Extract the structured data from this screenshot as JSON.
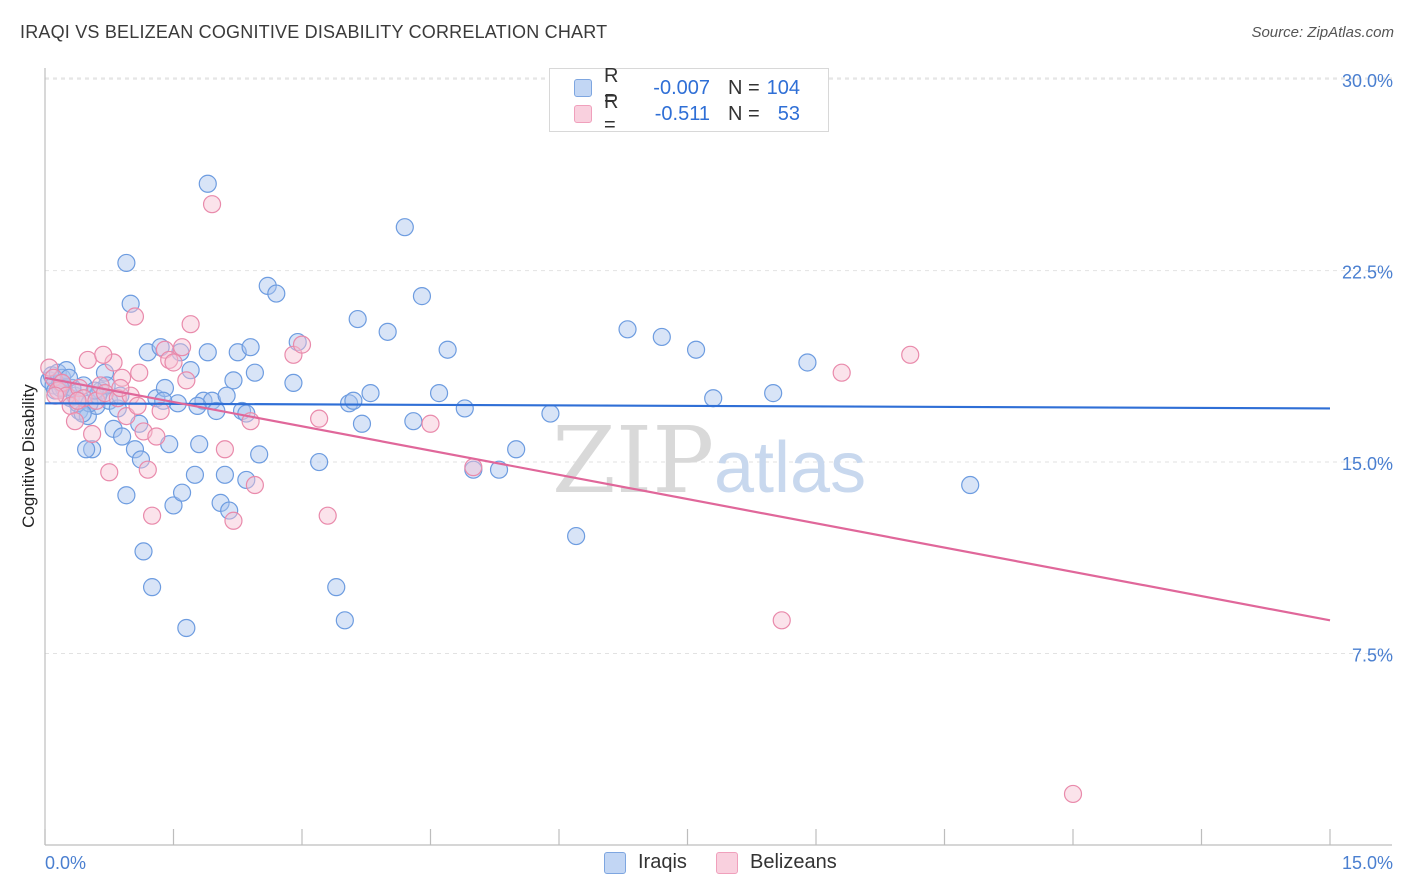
{
  "title": "IRAQI VS BELIZEAN COGNITIVE DISABILITY CORRELATION CHART",
  "source": "Source: ZipAtlas.com",
  "watermark": {
    "zip": "ZIP",
    "atlas": "atlas"
  },
  "legend": {
    "rows": [
      {
        "r_label": "R =",
        "r_value": "-0.007",
        "n_label": "N =",
        "n_value": "104",
        "color": "#7ea6e0"
      },
      {
        "r_label": "R =",
        "r_value": "-0.511",
        "n_label": "N =",
        "n_value": "53",
        "color": "#f0a0bc"
      }
    ]
  },
  "bottom_legend": [
    "Iraqis",
    "Belizeans"
  ],
  "colors": {
    "iraqi_fill": "#a8c4ee",
    "iraqi_stroke": "#6d9ce0",
    "iraqi_line": "#2f6fd6",
    "belize_fill": "#f7c2d3",
    "belize_stroke": "#e98aab",
    "belize_line": "#e0679a",
    "tick_text": "#4a7fd0",
    "grid": "#e2e2e2"
  },
  "chart_data": {
    "type": "scatter",
    "title": "IRAQI VS BELIZEAN COGNITIVE DISABILITY CORRELATION CHART",
    "xlabel": "",
    "ylabel": "Cognitive Disability",
    "xlim": [
      0,
      15
    ],
    "ylim": [
      0,
      31
    ],
    "x_tick_labels": [
      "0.0%",
      "15.0%"
    ],
    "y_ticks": [
      7.5,
      15.0,
      22.5,
      30.0
    ],
    "y_tick_labels": [
      "7.5%",
      "15.0%",
      "22.5%",
      "30.0%"
    ],
    "grid": true,
    "series": [
      {
        "name": "Iraqis",
        "r": -0.007,
        "n": 104,
        "trend": {
          "x": [
            0.0,
            15.0
          ],
          "y": [
            17.3,
            17.1
          ]
        },
        "points": [
          [
            0.05,
            18.2
          ],
          [
            0.08,
            18.4
          ],
          [
            0.1,
            18.0
          ],
          [
            0.12,
            17.8
          ],
          [
            0.15,
            18.5
          ],
          [
            0.18,
            18.1
          ],
          [
            0.2,
            18.3
          ],
          [
            0.22,
            17.9
          ],
          [
            0.25,
            18.6
          ],
          [
            0.3,
            17.5
          ],
          [
            0.35,
            17.6
          ],
          [
            0.4,
            17.0
          ],
          [
            0.45,
            18.0
          ],
          [
            0.5,
            16.8
          ],
          [
            0.55,
            15.5
          ],
          [
            0.6,
            17.2
          ],
          [
            0.65,
            17.8
          ],
          [
            0.7,
            18.5
          ],
          [
            0.75,
            17.4
          ],
          [
            0.8,
            16.3
          ],
          [
            0.85,
            17.1
          ],
          [
            0.9,
            16.0
          ],
          [
            0.95,
            13.7
          ],
          [
            1.0,
            21.2
          ],
          [
            1.05,
            15.5
          ],
          [
            1.1,
            16.5
          ],
          [
            1.15,
            11.5
          ],
          [
            1.2,
            19.3
          ],
          [
            1.25,
            10.1
          ],
          [
            1.3,
            17.5
          ],
          [
            1.35,
            19.5
          ],
          [
            1.4,
            17.9
          ],
          [
            1.45,
            15.7
          ],
          [
            1.5,
            13.3
          ],
          [
            1.55,
            17.3
          ],
          [
            1.6,
            13.8
          ],
          [
            1.65,
            8.5
          ],
          [
            1.7,
            18.6
          ],
          [
            1.75,
            14.5
          ],
          [
            1.8,
            15.7
          ],
          [
            1.85,
            17.4
          ],
          [
            1.9,
            19.3
          ],
          [
            1.95,
            17.4
          ],
          [
            2.0,
            17.0
          ],
          [
            2.05,
            13.4
          ],
          [
            2.1,
            14.5
          ],
          [
            2.15,
            13.1
          ],
          [
            2.2,
            18.2
          ],
          [
            2.25,
            19.3
          ],
          [
            2.3,
            17.0
          ],
          [
            2.35,
            14.3
          ],
          [
            2.4,
            19.5
          ],
          [
            2.45,
            18.5
          ],
          [
            2.5,
            15.3
          ],
          [
            2.6,
            21.9
          ],
          [
            2.7,
            21.6
          ],
          [
            2.9,
            18.1
          ],
          [
            2.95,
            19.7
          ],
          [
            3.2,
            15.0
          ],
          [
            3.4,
            10.1
          ],
          [
            3.5,
            8.8
          ],
          [
            3.55,
            17.3
          ],
          [
            3.6,
            17.4
          ],
          [
            3.65,
            20.6
          ],
          [
            3.7,
            16.5
          ],
          [
            3.8,
            17.7
          ],
          [
            4.0,
            20.1
          ],
          [
            4.2,
            24.2
          ],
          [
            4.3,
            16.6
          ],
          [
            4.4,
            21.5
          ],
          [
            4.6,
            17.7
          ],
          [
            4.7,
            19.4
          ],
          [
            4.9,
            17.1
          ],
          [
            5.0,
            14.7
          ],
          [
            5.3,
            14.7
          ],
          [
            5.5,
            15.5
          ],
          [
            5.9,
            16.9
          ],
          [
            6.2,
            12.1
          ],
          [
            6.8,
            20.2
          ],
          [
            7.2,
            19.9
          ],
          [
            7.6,
            19.4
          ],
          [
            7.8,
            17.5
          ],
          [
            8.5,
            17.7
          ],
          [
            8.9,
            18.9
          ],
          [
            10.8,
            14.1
          ],
          [
            1.9,
            25.9
          ],
          [
            0.95,
            22.8
          ],
          [
            0.38,
            17.3
          ],
          [
            0.52,
            17.3
          ],
          [
            0.62,
            17.6
          ],
          [
            0.72,
            18.0
          ],
          [
            0.88,
            17.6
          ],
          [
            1.12,
            15.1
          ],
          [
            1.38,
            17.4
          ],
          [
            1.58,
            19.3
          ],
          [
            1.78,
            17.2
          ],
          [
            2.12,
            17.6
          ],
          [
            2.35,
            16.9
          ],
          [
            0.32,
            17.9
          ],
          [
            0.44,
            16.9
          ],
          [
            0.48,
            15.5
          ],
          [
            0.58,
            17.8
          ],
          [
            0.28,
            18.3
          ],
          [
            0.18,
            17.9
          ]
        ]
      },
      {
        "name": "Belizeans",
        "r": -0.511,
        "n": 53,
        "trend": {
          "x": [
            0.0,
            15.0
          ],
          "y": [
            18.3,
            8.8
          ]
        },
        "points": [
          [
            0.05,
            18.7
          ],
          [
            0.1,
            18.3
          ],
          [
            0.15,
            17.8
          ],
          [
            0.2,
            18.1
          ],
          [
            0.25,
            17.6
          ],
          [
            0.3,
            17.2
          ],
          [
            0.35,
            16.6
          ],
          [
            0.4,
            17.9
          ],
          [
            0.45,
            17.5
          ],
          [
            0.5,
            19.0
          ],
          [
            0.55,
            16.1
          ],
          [
            0.6,
            17.4
          ],
          [
            0.65,
            18.0
          ],
          [
            0.7,
            17.7
          ],
          [
            0.75,
            14.6
          ],
          [
            0.8,
            18.9
          ],
          [
            0.85,
            17.5
          ],
          [
            0.9,
            18.3
          ],
          [
            0.95,
            16.8
          ],
          [
            1.0,
            17.6
          ],
          [
            1.05,
            20.7
          ],
          [
            1.1,
            18.5
          ],
          [
            1.15,
            16.2
          ],
          [
            1.2,
            14.7
          ],
          [
            1.25,
            12.9
          ],
          [
            1.3,
            16.0
          ],
          [
            1.35,
            17.0
          ],
          [
            1.4,
            19.4
          ],
          [
            1.45,
            19.0
          ],
          [
            1.5,
            18.9
          ],
          [
            1.6,
            19.5
          ],
          [
            1.65,
            18.2
          ],
          [
            1.7,
            20.4
          ],
          [
            1.95,
            25.1
          ],
          [
            2.1,
            15.5
          ],
          [
            2.2,
            12.7
          ],
          [
            2.4,
            16.6
          ],
          [
            2.45,
            14.1
          ],
          [
            2.9,
            19.2
          ],
          [
            3.0,
            19.6
          ],
          [
            3.2,
            16.7
          ],
          [
            3.3,
            12.9
          ],
          [
            4.5,
            16.5
          ],
          [
            5.0,
            14.8
          ],
          [
            8.6,
            8.8
          ],
          [
            9.3,
            18.5
          ],
          [
            10.1,
            19.2
          ],
          [
            12.0,
            2.0
          ],
          [
            0.12,
            17.6
          ],
          [
            0.38,
            17.4
          ],
          [
            0.68,
            19.2
          ],
          [
            0.88,
            17.9
          ],
          [
            1.08,
            17.2
          ]
        ]
      }
    ]
  }
}
